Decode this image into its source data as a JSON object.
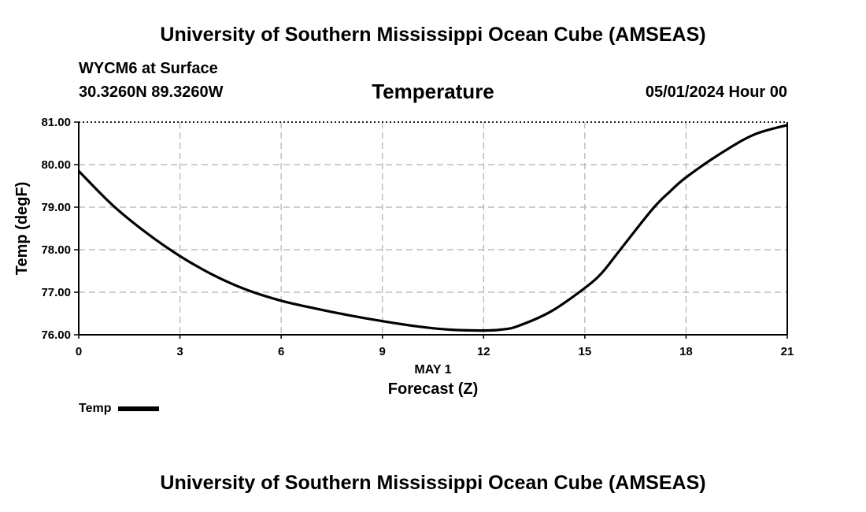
{
  "header": {
    "title": "University of Southern Mississippi Ocean Cube (AMSEAS)",
    "station": "WYCM6 at Surface",
    "coords": "30.3260N  89.3260W",
    "subtitle": "Temperature",
    "datetime": "05/01/2024 Hour 00"
  },
  "footer": {
    "title": "University of Southern Mississippi Ocean Cube (AMSEAS)"
  },
  "chart_data": {
    "type": "line",
    "title": "Temperature",
    "xlabel": "Forecast (Z)",
    "xdate_label": "MAY 1",
    "ylabel": "Temp (degF)",
    "xlim": [
      0,
      21
    ],
    "ylim": [
      76,
      81
    ],
    "xticks": [
      "0",
      "3",
      "6",
      "9",
      "12",
      "15",
      "18",
      "21"
    ],
    "yticks": [
      "76.00",
      "77.00",
      "78.00",
      "79.00",
      "80.00",
      "81.00"
    ],
    "grid": true,
    "legend_position": "bottom-left",
    "series": [
      {
        "name": "Temp",
        "color": "#000000",
        "x": [
          0,
          1,
          2,
          3,
          4,
          5,
          6,
          7,
          8,
          9,
          10,
          11,
          12,
          12.5,
          13,
          14,
          15,
          15.5,
          16,
          17,
          17.5,
          18,
          19,
          20,
          21
        ],
        "values": [
          79.85,
          79.05,
          78.4,
          77.85,
          77.4,
          77.05,
          76.8,
          76.62,
          76.46,
          76.32,
          76.2,
          76.12,
          76.1,
          76.12,
          76.2,
          76.55,
          77.1,
          77.45,
          77.95,
          78.95,
          79.35,
          79.7,
          80.25,
          80.7,
          80.93
        ]
      }
    ]
  }
}
